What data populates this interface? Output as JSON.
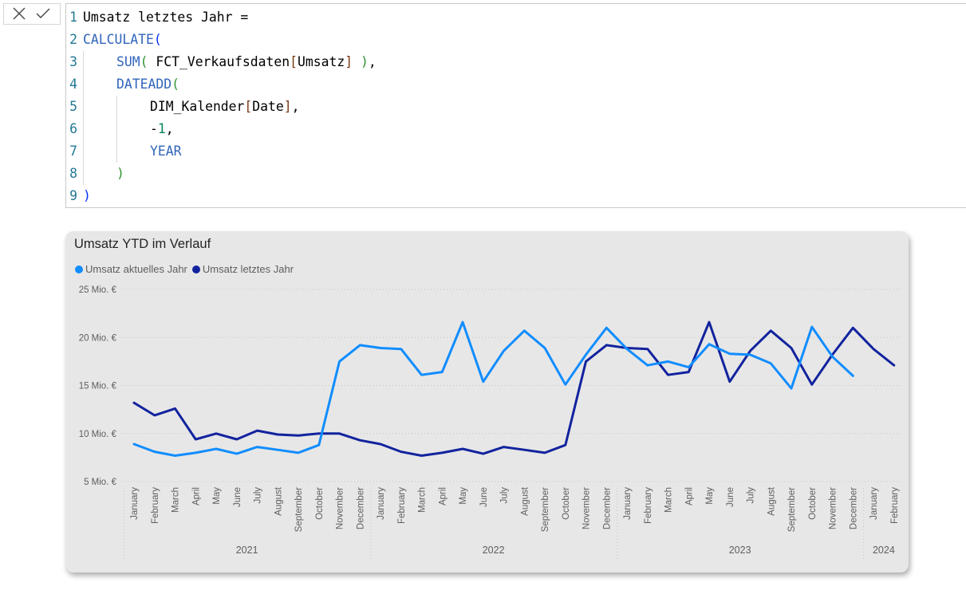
{
  "formula_bar": {
    "cancel_icon": "close-icon",
    "commit_icon": "checkmark-icon",
    "lines": [
      {
        "n": "1",
        "indent": 0,
        "tokens": [
          [
            "Umsatz letztes Jahr =",
            "txt"
          ]
        ]
      },
      {
        "n": "2",
        "indent": 0,
        "tokens": [
          [
            "CALCULATE",
            "fn"
          ],
          [
            "(",
            "br1"
          ]
        ]
      },
      {
        "n": "3",
        "indent": 1,
        "tokens": [
          [
            "SUM",
            "fn"
          ],
          [
            "(",
            "br2"
          ],
          [
            " FCT_Verkaufsdaten",
            "txt"
          ],
          [
            "[",
            "br3"
          ],
          [
            "Umsatz",
            "txt"
          ],
          [
            "]",
            "br3"
          ],
          [
            " ",
            "txt"
          ],
          [
            ")",
            "br2"
          ],
          [
            ",",
            "txt"
          ]
        ]
      },
      {
        "n": "4",
        "indent": 1,
        "tokens": [
          [
            "DATEADD",
            "fn"
          ],
          [
            "(",
            "br2"
          ]
        ]
      },
      {
        "n": "5",
        "indent": 2,
        "tokens": [
          [
            "DIM_Kalender",
            "txt"
          ],
          [
            "[",
            "br3"
          ],
          [
            "Date",
            "txt"
          ],
          [
            "]",
            "br3"
          ],
          [
            ",",
            "txt"
          ]
        ]
      },
      {
        "n": "6",
        "indent": 2,
        "tokens": [
          [
            "-",
            "txt"
          ],
          [
            "1",
            "num"
          ],
          [
            ",",
            "txt"
          ]
        ]
      },
      {
        "n": "7",
        "indent": 2,
        "tokens": [
          [
            "YEAR",
            "kw"
          ]
        ]
      },
      {
        "n": "8",
        "indent": 1,
        "tokens": [
          [
            ")",
            "br2"
          ]
        ]
      },
      {
        "n": "9",
        "indent": 0,
        "tokens": [
          [
            ")",
            "br1"
          ]
        ]
      }
    ]
  },
  "chart": {
    "title": "Umsatz YTD im Verlauf",
    "colors": {
      "current": "#118dff",
      "previous": "#12239e",
      "grid": "#c8c6c4",
      "axis_text": "#605e5c"
    }
  },
  "chart_data": {
    "type": "line",
    "title": "Umsatz YTD im Verlauf",
    "y_ticks": [
      "5 Mio. €",
      "10 Mio. €",
      "15 Mio. €",
      "20 Mio. €",
      "25 Mio. €"
    ],
    "ylim": [
      5,
      25
    ],
    "grid": true,
    "legend_position": "top-left",
    "categories": [
      "January",
      "February",
      "March",
      "April",
      "May",
      "June",
      "July",
      "August",
      "September",
      "October",
      "November",
      "December",
      "January",
      "February",
      "March",
      "April",
      "May",
      "June",
      "July",
      "August",
      "September",
      "October",
      "November",
      "December",
      "January",
      "February",
      "March",
      "April",
      "May",
      "June",
      "July",
      "August",
      "September",
      "October",
      "November",
      "December",
      "January",
      "February"
    ],
    "years": [
      {
        "label": "2021",
        "start": 0,
        "end": 11
      },
      {
        "label": "2022",
        "start": 12,
        "end": 23
      },
      {
        "label": "2023",
        "start": 24,
        "end": 35
      },
      {
        "label": "2024",
        "start": 36,
        "end": 37
      }
    ],
    "series": [
      {
        "name": "Umsatz aktuelles Jahr",
        "color": "#118dff",
        "values": [
          8.9,
          8.1,
          7.7,
          8.0,
          8.4,
          7.9,
          8.6,
          8.3,
          8.0,
          8.8,
          17.5,
          19.2,
          18.9,
          18.8,
          16.1,
          16.4,
          21.6,
          15.4,
          18.6,
          20.7,
          18.9,
          15.1,
          18.2,
          21.0,
          18.8,
          17.1,
          17.5,
          16.9,
          19.3,
          18.3,
          18.2,
          17.3,
          14.7,
          21.1,
          18.0,
          16.0,
          null,
          null
        ]
      },
      {
        "name": "Umsatz letztes Jahr",
        "color": "#12239e",
        "values": [
          13.2,
          11.9,
          12.6,
          9.4,
          10.0,
          9.4,
          10.3,
          9.9,
          9.8,
          10.0,
          10.0,
          9.3,
          8.9,
          8.1,
          7.7,
          8.0,
          8.4,
          7.9,
          8.6,
          8.3,
          8.0,
          8.8,
          17.5,
          19.2,
          18.9,
          18.8,
          16.1,
          16.4,
          21.6,
          15.4,
          18.6,
          20.7,
          18.9,
          15.1,
          18.2,
          21.0,
          18.8,
          17.1
        ]
      }
    ]
  }
}
